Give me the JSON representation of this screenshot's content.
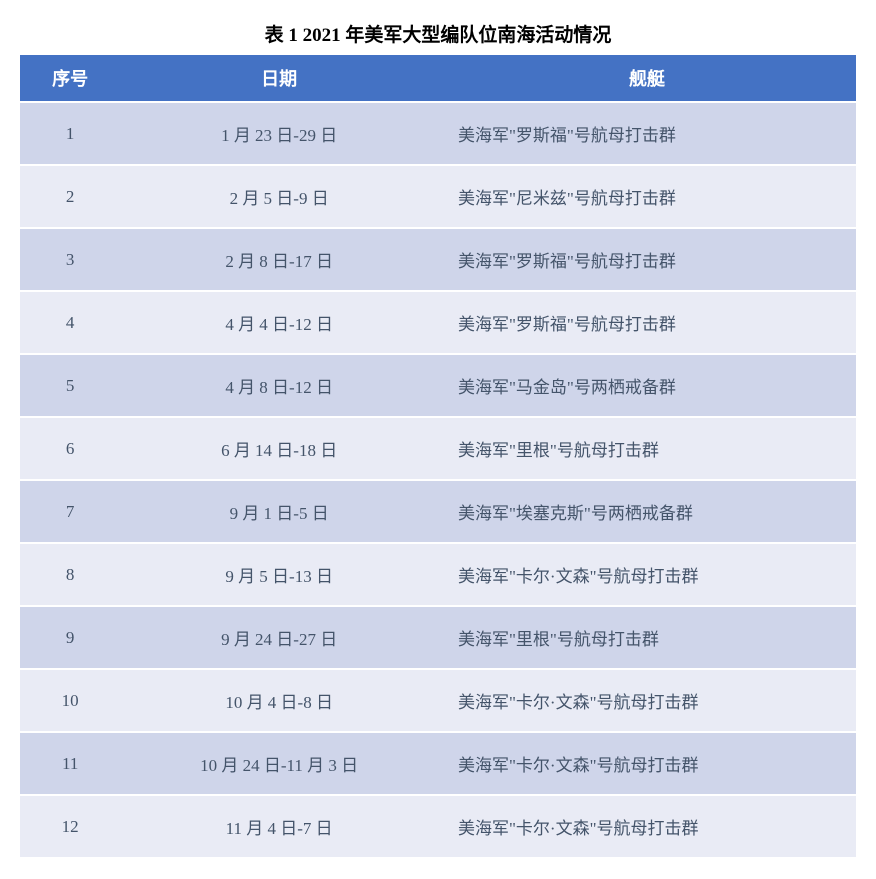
{
  "table": {
    "type": "table",
    "title": "表 1  2021 年美军大型编队位南海活动情况",
    "title_color": "#000000",
    "title_fontsize": 19,
    "header_bg": "#4472c4",
    "header_color": "#ffffff",
    "header_fontsize": 18,
    "row_odd_bg": "#cfd5ea",
    "row_even_bg": "#e9ebf5",
    "body_text_color": "#44546a",
    "body_fontsize": 17,
    "border_color": "#ffffff",
    "columns": [
      {
        "key": "index",
        "label": "序号",
        "width": "12%",
        "align": "center"
      },
      {
        "key": "date",
        "label": "日期",
        "width": "38%",
        "align": "center"
      },
      {
        "key": "ship",
        "label": "舰艇",
        "width": "50%",
        "align": "left"
      }
    ],
    "rows": [
      {
        "index": "1",
        "date": "1 月 23 日-29 日",
        "ship": "美海军\"罗斯福\"号航母打击群"
      },
      {
        "index": "2",
        "date": "2 月 5 日-9 日",
        "ship": "美海军\"尼米兹\"号航母打击群"
      },
      {
        "index": "3",
        "date": "2 月 8 日-17 日",
        "ship": "美海军\"罗斯福\"号航母打击群"
      },
      {
        "index": "4",
        "date": "4 月 4 日-12 日",
        "ship": "美海军\"罗斯福\"号航母打击群"
      },
      {
        "index": "5",
        "date": "4 月 8 日-12 日",
        "ship": "美海军\"马金岛\"号两栖戒备群"
      },
      {
        "index": "6",
        "date": "6 月 14 日-18 日",
        "ship": "美海军\"里根\"号航母打击群"
      },
      {
        "index": "7",
        "date": "9 月 1 日-5 日",
        "ship": "美海军\"埃塞克斯\"号两栖戒备群"
      },
      {
        "index": "8",
        "date": "9 月 5 日-13 日",
        "ship": "美海军\"卡尔·文森\"号航母打击群"
      },
      {
        "index": "9",
        "date": "9 月 24 日-27 日",
        "ship": "美海军\"里根\"号航母打击群"
      },
      {
        "index": "10",
        "date": "10 月 4 日-8 日",
        "ship": "美海军\"卡尔·文森\"号航母打击群"
      },
      {
        "index": "11",
        "date": "10 月 24 日-11 月 3 日",
        "ship": "美海军\"卡尔·文森\"号航母打击群"
      },
      {
        "index": "12",
        "date": "11 月 4 日-7 日",
        "ship": "美海军\"卡尔·文森\"号航母打击群"
      }
    ]
  }
}
